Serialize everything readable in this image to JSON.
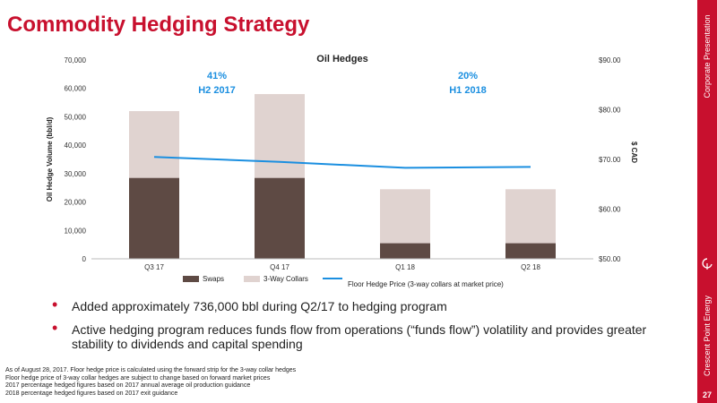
{
  "slide": {
    "title": "Commodity Hedging Strategy",
    "side_top": "Corporate Presentation",
    "side_bottom": "Crescent Point Energy",
    "page_number": "27",
    "accent_color": "#c8102e"
  },
  "chart_data": {
    "type": "bar",
    "title": "Oil Hedges",
    "categories": [
      "Q3 17",
      "Q4 17",
      "Q1 18",
      "Q2 18"
    ],
    "series": [
      {
        "name": "Swaps",
        "type": "bar",
        "stack": "hedge",
        "axis": "left",
        "color": "#5e4a44",
        "values": [
          28500,
          28500,
          5500,
          5500
        ]
      },
      {
        "name": "3-Way Collars",
        "type": "bar",
        "stack": "hedge",
        "axis": "left",
        "color": "#e0d3d0",
        "values": [
          23500,
          29500,
          19000,
          19000
        ]
      },
      {
        "name": "Floor Hedge Price (3-way collars at market price)",
        "type": "line",
        "axis": "right",
        "color": "#1b8fe0",
        "values": [
          70.5,
          69.5,
          68.3,
          68.5
        ]
      }
    ],
    "ylabel": "Oil Hedge Volume (bbl/d)",
    "y2label": "$ CAD",
    "ylim": [
      0,
      70000
    ],
    "y2lim": [
      50,
      90
    ],
    "yticks": [
      "0",
      "10,000",
      "20,000",
      "30,000",
      "40,000",
      "50,000",
      "60,000",
      "70,000"
    ],
    "y2ticks": [
      "$50.00",
      "$60.00",
      "$70.00",
      "$80.00",
      "$90.00"
    ],
    "annotations": [
      {
        "line1": "41%",
        "line2": "H2 2017"
      },
      {
        "line1": "20%",
        "line2": "H1 2018"
      }
    ],
    "annotation_color": "#1b8fe0",
    "legend_position": "bottom",
    "grid": false
  },
  "bullets": [
    "Added approximately 736,000 bbl during Q2/17 to hedging program",
    "Active hedging program reduces funds flow from operations (“funds flow”) volatility and provides greater stability to dividends and capital spending"
  ],
  "footnotes": [
    "As of August 28, 2017. Floor hedge price is calculated using the forward strip for the 3-way collar hedges",
    "Floor hedge price of 3-way collar hedges are subject to change based on forward market prices",
    "2017 percentage hedged figures based on 2017 annual average oil production guidance",
    "2018 percentage hedged figures based on 2017 exit guidance"
  ]
}
